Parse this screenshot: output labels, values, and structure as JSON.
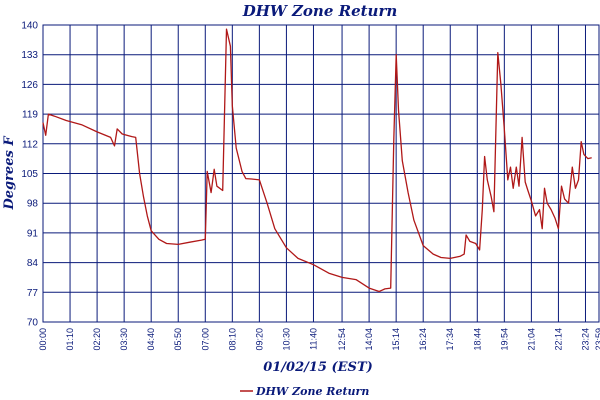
{
  "chart_data": {
    "type": "line",
    "title": "DHW Zone Return",
    "xlabel": "01/02/15 (EST)",
    "ylabel": "Degrees F",
    "ylim": [
      70,
      140
    ],
    "yticks": [
      70,
      77,
      84,
      91,
      98,
      105,
      112,
      119,
      126,
      133,
      140
    ],
    "xticks": [
      "00:00",
      "01:10",
      "02:20",
      "03:30",
      "04:40",
      "05:50",
      "07:00",
      "08:10",
      "09:20",
      "10:30",
      "11:40",
      "12:54",
      "14:04",
      "15:14",
      "16:24",
      "17:34",
      "18:44",
      "19:54",
      "21:04",
      "22:14",
      "23:24",
      "23:59"
    ],
    "grid": true,
    "legend": "bottom-center",
    "series": [
      {
        "name": "DHW Zone Return",
        "color": "#b01818",
        "points": [
          [
            "00:00",
            117.0
          ],
          [
            "00:07",
            114.0
          ],
          [
            "00:14",
            119.0
          ],
          [
            "00:30",
            118.5
          ],
          [
            "01:00",
            117.5
          ],
          [
            "01:40",
            116.5
          ],
          [
            "02:20",
            114.8
          ],
          [
            "02:55",
            113.5
          ],
          [
            "03:05",
            111.5
          ],
          [
            "03:12",
            115.5
          ],
          [
            "03:25",
            114.3
          ],
          [
            "03:50",
            113.7
          ],
          [
            "04:00",
            113.5
          ],
          [
            "04:10",
            105.0
          ],
          [
            "04:20",
            99.5
          ],
          [
            "04:30",
            95.0
          ],
          [
            "04:40",
            91.5
          ],
          [
            "05:00",
            89.5
          ],
          [
            "05:20",
            88.5
          ],
          [
            "05:50",
            88.3
          ],
          [
            "06:20",
            88.8
          ],
          [
            "06:50",
            89.3
          ],
          [
            "07:00",
            89.5
          ],
          [
            "07:05",
            105.5
          ],
          [
            "07:15",
            100.5
          ],
          [
            "07:23",
            106.0
          ],
          [
            "07:30",
            102.0
          ],
          [
            "07:45",
            101.0
          ],
          [
            "07:55",
            139.0
          ],
          [
            "08:05",
            135.0
          ],
          [
            "08:10",
            121.0
          ],
          [
            "08:20",
            111.0
          ],
          [
            "08:35",
            105.5
          ],
          [
            "08:45",
            103.8
          ],
          [
            "09:00",
            103.7
          ],
          [
            "09:20",
            103.5
          ],
          [
            "09:40",
            98.0
          ],
          [
            "10:00",
            92.0
          ],
          [
            "10:30",
            87.5
          ],
          [
            "11:00",
            85.0
          ],
          [
            "11:40",
            83.5
          ],
          [
            "12:20",
            81.5
          ],
          [
            "12:54",
            80.5
          ],
          [
            "13:30",
            80.0
          ],
          [
            "14:04",
            78.0
          ],
          [
            "14:30",
            77.2
          ],
          [
            "14:45",
            77.8
          ],
          [
            "15:00",
            78.0
          ],
          [
            "15:08",
            113.0
          ],
          [
            "15:14",
            133.0
          ],
          [
            "15:20",
            120.0
          ],
          [
            "15:30",
            108.0
          ],
          [
            "15:45",
            100.5
          ],
          [
            "16:00",
            94.0
          ],
          [
            "16:24",
            88.0
          ],
          [
            "16:50",
            86.0
          ],
          [
            "17:10",
            85.2
          ],
          [
            "17:34",
            85.0
          ],
          [
            "18:00",
            85.5
          ],
          [
            "18:10",
            86.0
          ],
          [
            "18:15",
            90.5
          ],
          [
            "18:25",
            89.0
          ],
          [
            "18:40",
            88.5
          ],
          [
            "18:50",
            87.0
          ],
          [
            "18:57",
            96.5
          ],
          [
            "19:03",
            109.0
          ],
          [
            "19:10",
            103.5
          ],
          [
            "19:20",
            99.5
          ],
          [
            "19:27",
            96.0
          ],
          [
            "19:37",
            133.5
          ],
          [
            "19:45",
            126.0
          ],
          [
            "19:54",
            115.5
          ],
          [
            "20:03",
            103.5
          ],
          [
            "20:10",
            106.5
          ],
          [
            "20:17",
            101.5
          ],
          [
            "20:25",
            106.5
          ],
          [
            "20:32",
            102.0
          ],
          [
            "20:40",
            113.5
          ],
          [
            "20:48",
            103.0
          ],
          [
            "20:55",
            101.0
          ],
          [
            "21:04",
            98.5
          ],
          [
            "21:15",
            95.0
          ],
          [
            "21:25",
            96.5
          ],
          [
            "21:32",
            92.0
          ],
          [
            "21:38",
            101.5
          ],
          [
            "21:45",
            98.0
          ],
          [
            "21:55",
            96.5
          ],
          [
            "22:05",
            94.5
          ],
          [
            "22:14",
            92.0
          ],
          [
            "22:22",
            102.0
          ],
          [
            "22:30",
            99.0
          ],
          [
            "22:40",
            98.0
          ],
          [
            "22:50",
            106.5
          ],
          [
            "22:58",
            101.5
          ],
          [
            "23:06",
            103.5
          ],
          [
            "23:13",
            112.5
          ],
          [
            "23:20",
            109.5
          ],
          [
            "23:30",
            108.5
          ],
          [
            "23:40",
            108.7
          ]
        ]
      }
    ]
  }
}
